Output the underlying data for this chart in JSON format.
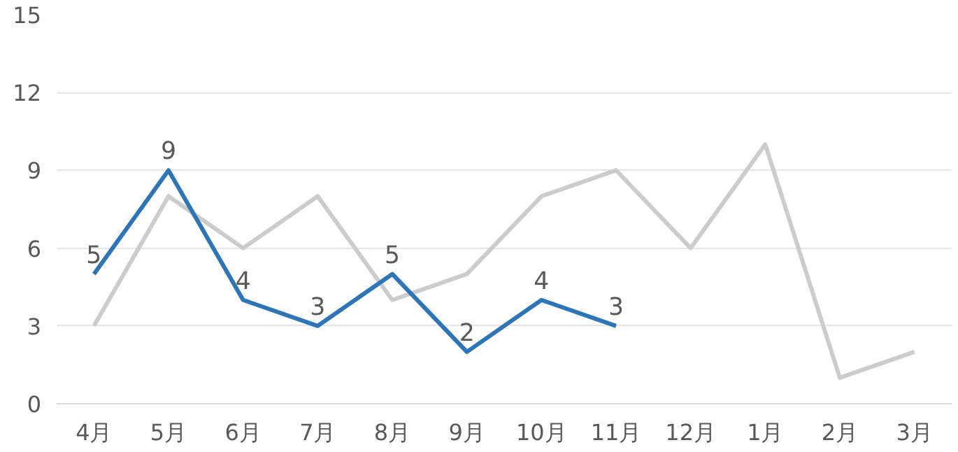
{
  "chart_data": {
    "type": "line",
    "categories": [
      "4月",
      "5月",
      "6月",
      "7月",
      "8月",
      "9月",
      "10月",
      "11月",
      "12月",
      "1月",
      "2月",
      "3月"
    ],
    "series": [
      {
        "color": "#cccccc",
        "values": [
          3,
          8,
          6,
          8,
          4,
          5,
          8,
          9,
          6,
          10,
          1,
          2
        ]
      },
      {
        "color": "#2e75b6",
        "values": [
          5,
          9,
          4,
          3,
          5,
          2,
          4,
          3,
          null,
          null,
          null,
          null
        ],
        "value_labels": [
          "5",
          "9",
          "4",
          "3",
          "5",
          "2",
          "4",
          "3",
          null,
          null,
          null,
          null
        ]
      }
    ],
    "ylim": [
      0,
      15
    ],
    "yticks": [
      0,
      3,
      6,
      9,
      12,
      15
    ],
    "grid": "y",
    "marker": "none",
    "line_style": "solid"
  }
}
